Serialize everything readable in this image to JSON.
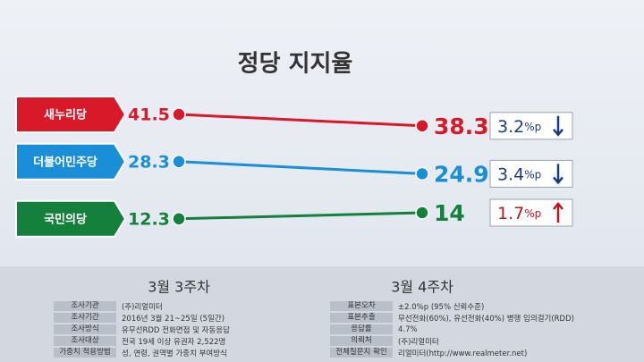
{
  "chart_data": {
    "type": "line",
    "title": "정당 지지율",
    "categories": [
      "3월 3주차",
      "3월 4주차"
    ],
    "ylim": [
      0,
      50
    ],
    "series": [
      {
        "name": "새누리당",
        "color": "#d7192a",
        "values": [
          41.5,
          38.3
        ],
        "change": 3.2,
        "change_unit": "%p",
        "change_direction": "down"
      },
      {
        "name": "더불어민주당",
        "color": "#1a8fd8",
        "values": [
          28.3,
          24.9
        ],
        "change": 3.4,
        "change_unit": "%p",
        "change_direction": "down"
      },
      {
        "name": "국민의당",
        "color": "#14803b",
        "values": [
          12.3,
          14
        ],
        "change": 1.7,
        "change_unit": "%p",
        "change_direction": "up"
      }
    ]
  },
  "survey": {
    "left": [
      [
        "조사기관",
        "(주)리얼미터"
      ],
      [
        "조사기간",
        "2016년 3월 21~25일 (5일간)"
      ],
      [
        "조사방식",
        "유무선RDD 전화면접 및 자동응답"
      ],
      [
        "조사대상",
        "전국 19세 이상 유권자 2,522명"
      ],
      [
        "가중치 적용방법",
        "성, 연령, 권역별 가중치 부여방식"
      ]
    ],
    "right": [
      [
        "표본오차",
        "±2.0%p (95% 신뢰수준)"
      ],
      [
        "표본추출",
        "무선전화(60%), 유선전화(40%) 병행 임의걸기(RDD)"
      ],
      [
        "응답률",
        "4.7%"
      ],
      [
        "의뢰처",
        "(주)리얼미터"
      ],
      [
        "전체질문지 확인",
        "리얼미터(http://www.realmeter.net)"
      ]
    ]
  }
}
